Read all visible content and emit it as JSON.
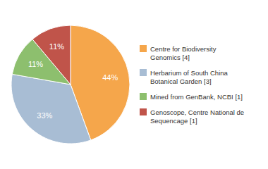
{
  "chart_data": {
    "type": "pie",
    "categories": [
      "Centre for Biodiversity\nGenomics [4]",
      "Herbarium of South China\nBotanical Garden [3]",
      "Mined from GenBank, NCBI [1]",
      "Genoscope, Centre National de\nSequencage [1]"
    ],
    "values": [
      44,
      33,
      11,
      11
    ],
    "value_labels": [
      "44%",
      "33%",
      "11%",
      "11%"
    ],
    "colors": [
      "#F5A64B",
      "#A8BDD4",
      "#8DBF6E",
      "#C0544A"
    ],
    "data_labels": true,
    "legend": "right"
  }
}
